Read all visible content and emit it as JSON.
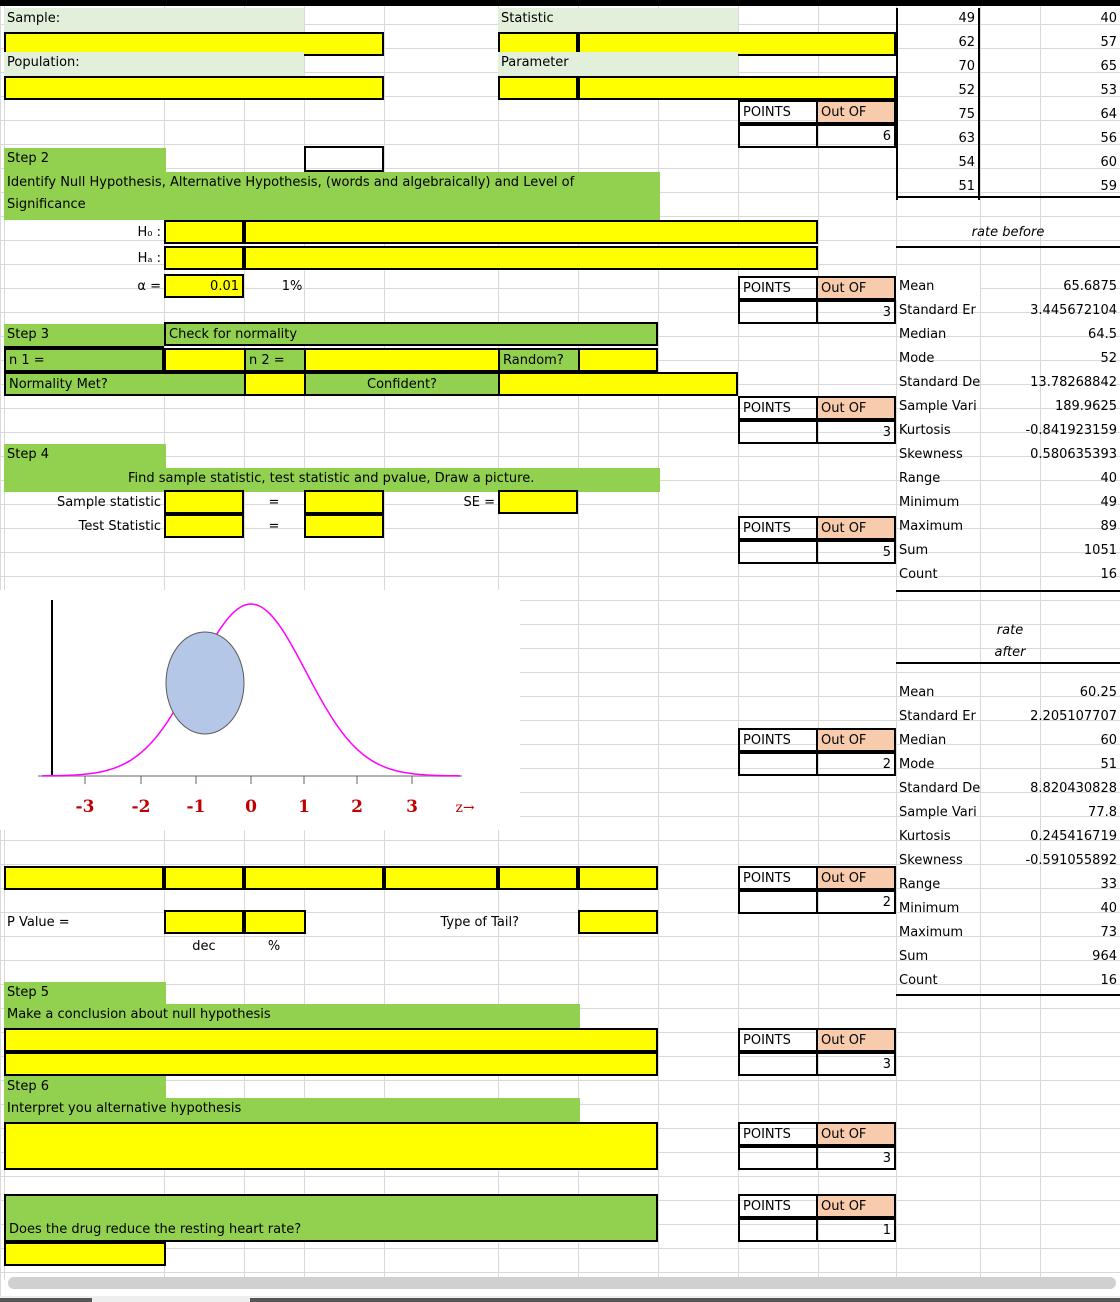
{
  "header": {
    "sample_label": "Sample:",
    "population_label": "Population:",
    "statistic_label": "Statistic",
    "parameter_label": "Parameter"
  },
  "points_label": "POINTS",
  "outof_label": "Out OF",
  "points_boxes": [
    {
      "outof": "6"
    },
    {
      "outof": "3"
    },
    {
      "outof": "3"
    },
    {
      "outof": "5"
    },
    {
      "outof": "2"
    },
    {
      "outof": "2"
    },
    {
      "outof": "3"
    },
    {
      "outof": "3"
    },
    {
      "outof": "1"
    }
  ],
  "step2": {
    "title": "Step 2",
    "instruction_line1": "Identify Null Hypothesis, Alternative Hypothesis, (words and algebraically)  and Level of",
    "instruction_line2": "Significance",
    "h0_label": "H₀ :",
    "ha_label": "Hₐ :",
    "alpha_label": "α =",
    "alpha_value": "0.01",
    "alpha_percent": "1%"
  },
  "step3": {
    "title": "Step 3",
    "check": "Check for normality",
    "n1_label": "n 1 =",
    "n2_label": "n 2 =",
    "random_label": "Random?",
    "normality_label": "Normality Met?",
    "confident_label": "Confident?"
  },
  "step4": {
    "title": "Step 4",
    "instruction": "Find sample statistic, test statistic and pvalue, Draw a picture.",
    "sample_stat_label": "Sample statistic",
    "test_stat_label": "Test Statistic",
    "equals": "=",
    "se_label": "SE =",
    "axis_labels": [
      "-3",
      "-2",
      "-1",
      "0",
      "1",
      "2",
      "3",
      "z→"
    ],
    "pvalue_label": "P Value =",
    "dec_label": "dec",
    "pct_label": "%",
    "tail_label": "Type of Tail?"
  },
  "step5": {
    "title": "Step 5",
    "instruction": "Make a conclusion about null hypothesis"
  },
  "step6": {
    "title": "Step 6",
    "instruction": "Interpret you alternative hypothesis",
    "question": "Does the drug reduce the resting heart rate?"
  },
  "data_columns": {
    "before": [
      "49",
      "62",
      "70",
      "52",
      "75",
      "63",
      "54",
      "51"
    ],
    "after": [
      "40",
      "57",
      "65",
      "53",
      "64",
      "56",
      "60",
      "59"
    ]
  },
  "stats_before": {
    "title": "rate before",
    "rows": [
      {
        "label": "Mean",
        "value": "65.6875"
      },
      {
        "label": "Standard Er",
        "value": "3.445672104"
      },
      {
        "label": "Median",
        "value": "64.5"
      },
      {
        "label": "Mode",
        "value": "52"
      },
      {
        "label": "Standard De",
        "value": "13.78268842"
      },
      {
        "label": "Sample Vari",
        "value": "189.9625"
      },
      {
        "label": "Kurtosis",
        "value": "-0.841923159"
      },
      {
        "label": "Skewness",
        "value": "0.580635393"
      },
      {
        "label": "Range",
        "value": "40"
      },
      {
        "label": "Minimum",
        "value": "49"
      },
      {
        "label": "Maximum",
        "value": "89"
      },
      {
        "label": "Sum",
        "value": "1051"
      },
      {
        "label": "Count",
        "value": "16"
      }
    ]
  },
  "stats_after": {
    "title_line1": "rate",
    "title_line2": "after",
    "rows": [
      {
        "label": "Mean",
        "value": "60.25"
      },
      {
        "label": "Standard Er",
        "value": "2.205107707"
      },
      {
        "label": "Median",
        "value": "60"
      },
      {
        "label": "Mode",
        "value": "51"
      },
      {
        "label": "Standard De",
        "value": "8.820430828"
      },
      {
        "label": "Sample Vari",
        "value": "77.8"
      },
      {
        "label": "Kurtosis",
        "value": "0.245416719"
      },
      {
        "label": "Skewness",
        "value": "-0.591055892"
      },
      {
        "label": "Range",
        "value": "33"
      },
      {
        "label": "Minimum",
        "value": "40"
      },
      {
        "label": "Maximum",
        "value": "73"
      },
      {
        "label": "Sum",
        "value": "964"
      },
      {
        "label": "Count",
        "value": "16"
      }
    ]
  },
  "colors": {
    "yellow": "#ffff00",
    "green": "#92d050",
    "light_green": "#e2efda",
    "salmon": "#f8cbad",
    "curve": "#ff00ff",
    "ellipse": "#b4c7e7",
    "axis_label": "#c00000"
  }
}
